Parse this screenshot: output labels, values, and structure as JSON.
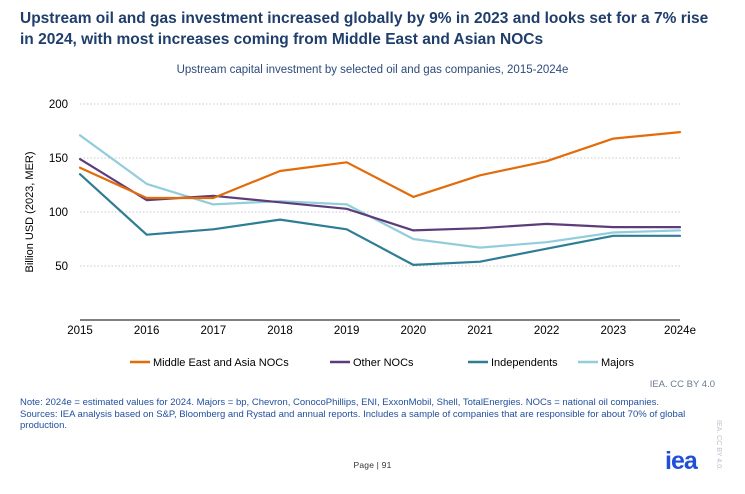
{
  "headline": "Upstream oil and gas investment increased globally by 9% in 2023 and looks set for a 7% rise in 2024, with most increases coming from Middle East and Asian NOCs",
  "credit": "IEA. CC BY 4.0",
  "notes": {
    "line1": "Note: 2024e = estimated values for 2024. Majors = bp, Chevron, ConocoPhillips, ENI, ExxonMobil, Shell, TotalEnergies. NOCs = national oil companies.",
    "line2": "Sources: IEA analysis based on S&P, Bloomberg and Rystad and annual reports. Includes a sample of companies that are responsible for about 70% of global production."
  },
  "page": "Page | 91",
  "logo": "iea",
  "vertical_credit": "IEA. CC BY 4.0.",
  "chart_data": {
    "type": "line",
    "title": "Upstream capital investment by selected oil and gas companies, 2015-2024e",
    "ylabel": "Billion USD (2023, MER)",
    "xlabel": "",
    "ylim": [
      0,
      200
    ],
    "yticks": [
      50,
      100,
      150,
      200
    ],
    "grid": true,
    "legend_position": "bottom",
    "categories": [
      "2015",
      "2016",
      "2017",
      "2018",
      "2019",
      "2020",
      "2021",
      "2022",
      "2023",
      "2024e"
    ],
    "series": [
      {
        "name": "Middle East and Asia NOCs",
        "color": "#e36c0a",
        "values": [
          141,
          113,
          113,
          138,
          146,
          114,
          134,
          147,
          168,
          174
        ]
      },
      {
        "name": "Other NOCs",
        "color": "#5c3d7a",
        "values": [
          149,
          111,
          115,
          109,
          103,
          83,
          85,
          89,
          86,
          86
        ]
      },
      {
        "name": "Independents",
        "color": "#2e7d95",
        "values": [
          135,
          79,
          84,
          93,
          84,
          51,
          54,
          66,
          78,
          78
        ]
      },
      {
        "name": "Majors",
        "color": "#92cddc",
        "values": [
          171,
          126,
          107,
          110,
          107,
          75,
          67,
          72,
          81,
          83
        ]
      }
    ]
  }
}
